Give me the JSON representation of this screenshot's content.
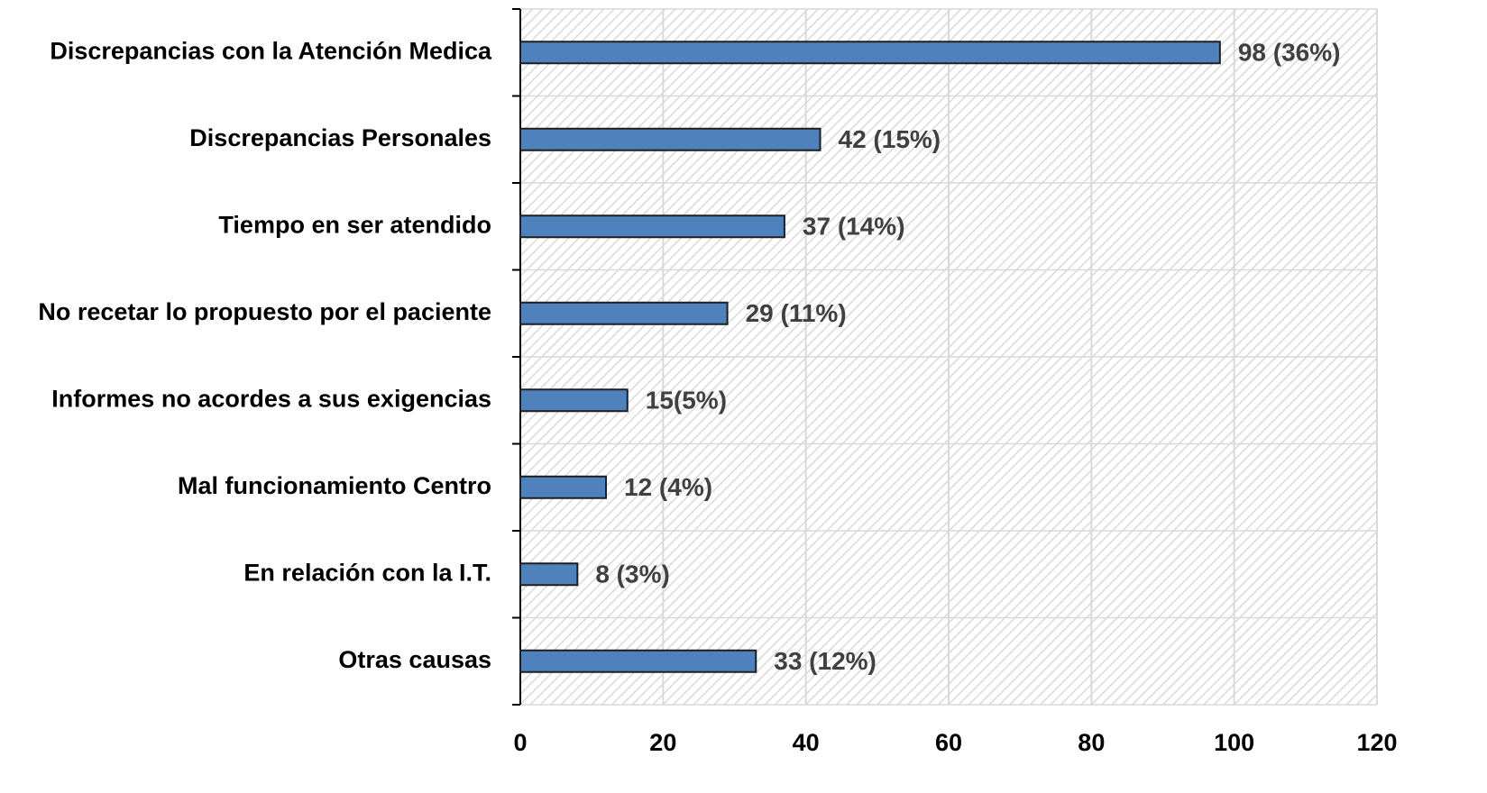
{
  "chart_data": {
    "type": "bar",
    "orientation": "horizontal",
    "categories": [
      "Discrepancias con la Atención Medica",
      "Discrepancias Personales",
      "Tiempo en ser atendido",
      "No recetar lo propuesto por el paciente",
      "Informes no acordes a sus exigencias",
      "Mal funcionamiento Centro",
      "En relación con la I.T.",
      "Otras causas"
    ],
    "values": [
      98,
      42,
      37,
      29,
      15,
      12,
      8,
      33
    ],
    "value_labels": [
      "98 (36%)",
      "42 (15%)",
      "37 (14%)",
      "29 (11%)",
      "15(5%)",
      "12 (4%)",
      "8 (3%)",
      "33 (12%)"
    ],
    "color": "#4f81bd",
    "xlim": [
      0,
      120
    ],
    "xticks": [
      0,
      20,
      40,
      60,
      80,
      100,
      120
    ],
    "grid": true
  }
}
